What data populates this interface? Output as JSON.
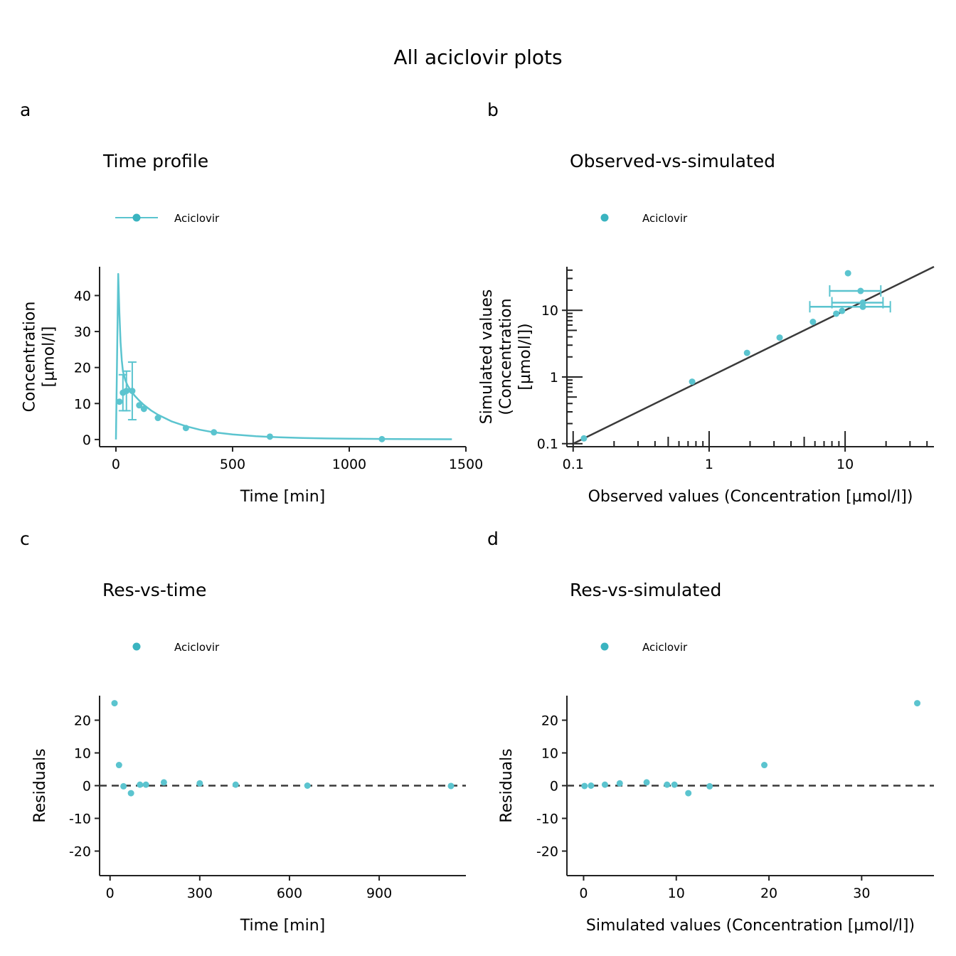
{
  "title": "All aciclovir plots",
  "colors": {
    "series": "#5bc4cf",
    "line": "#3a3a3a",
    "axis": "#222222"
  },
  "panels": [
    {
      "tag": "a",
      "title": "Time profile",
      "legend": "Aciclovir"
    },
    {
      "tag": "b",
      "title": "Observed-vs-simulated",
      "legend": "Aciclovir"
    },
    {
      "tag": "c",
      "title": "Res-vs-time",
      "legend": "Aciclovir"
    },
    {
      "tag": "d",
      "title": "Res-vs-simulated",
      "legend": "Aciclovir"
    }
  ],
  "chart_data": [
    {
      "type": "line",
      "title": "Time profile",
      "xlabel": "Time [min]",
      "ylabel": [
        "Concentration",
        "[µmol/l]"
      ],
      "xlim": [
        -70,
        1500
      ],
      "ylim": [
        -2,
        48
      ],
      "xticks": [
        0,
        500,
        1000,
        1500
      ],
      "yticks": [
        0,
        10,
        20,
        30,
        40
      ],
      "legend": {
        "entries": [
          "Aciclovir"
        ],
        "position": "top-left"
      },
      "simulated": {
        "name": "Aciclovir",
        "x": [
          0,
          10,
          15,
          20,
          25,
          30,
          40,
          50,
          60,
          80,
          100,
          120,
          150,
          180,
          240,
          300,
          360,
          420,
          500,
          600,
          700,
          800,
          900,
          1000,
          1100,
          1200,
          1300,
          1440
        ],
        "y": [
          0,
          46,
          35,
          27,
          22,
          19,
          16.5,
          15,
          14,
          12.2,
          10.8,
          9.6,
          8.1,
          6.9,
          5,
          3.7,
          2.7,
          2,
          1.4,
          0.9,
          0.6,
          0.42,
          0.3,
          0.22,
          0.17,
          0.13,
          0.1,
          0.08
        ]
      },
      "observed": {
        "name": "Aciclovir",
        "points": [
          {
            "x": 15,
            "y": 10.5
          },
          {
            "x": 30,
            "y": 13,
            "ymin": 8,
            "ymax": 18
          },
          {
            "x": 45,
            "y": 13.5,
            "ymin": 8,
            "ymax": 19
          },
          {
            "x": 70,
            "y": 13.5,
            "ymin": 5.5,
            "ymax": 21.5
          },
          {
            "x": 100,
            "y": 9.5
          },
          {
            "x": 120,
            "y": 8.5
          },
          {
            "x": 180,
            "y": 6
          },
          {
            "x": 300,
            "y": 3.2
          },
          {
            "x": 420,
            "y": 2
          },
          {
            "x": 660,
            "y": 0.8
          },
          {
            "x": 1140,
            "y": 0.1
          }
        ]
      }
    },
    {
      "type": "scatter",
      "title": "Observed-vs-simulated",
      "xlabel": "Observed values (Concentration [µmol/l])",
      "ylabel": [
        "Simulated values",
        "(Concentration",
        "[µmol/l])"
      ],
      "xscale": "log",
      "yscale": "log",
      "xlim": [
        0.09,
        45
      ],
      "ylim": [
        0.09,
        45
      ],
      "xticks": [
        0.1,
        1,
        10
      ],
      "yticks": [
        0.1,
        1,
        10
      ],
      "identity_line": true,
      "legend": {
        "entries": [
          "Aciclovir"
        ],
        "position": "top-left"
      },
      "points": [
        {
          "x": 0.12,
          "y": 0.12
        },
        {
          "x": 0.75,
          "y": 0.85
        },
        {
          "x": 1.9,
          "y": 2.3
        },
        {
          "x": 3.3,
          "y": 3.9
        },
        {
          "x": 5.8,
          "y": 6.7
        },
        {
          "x": 8.6,
          "y": 8.9
        },
        {
          "x": 9.5,
          "y": 9.8
        },
        {
          "x": 10.5,
          "y": 36
        },
        {
          "x": 13,
          "y": 19.5,
          "xmin": 7.7,
          "xmax": 18.3
        },
        {
          "x": 13.5,
          "y": 13,
          "xmin": 8,
          "xmax": 19
        },
        {
          "x": 13.5,
          "y": 11.3,
          "xmin": 5.5,
          "xmax": 21.5
        }
      ]
    },
    {
      "type": "scatter",
      "title": "Res-vs-time",
      "xlabel": "Time [min]",
      "ylabel": "Residuals",
      "xlim": [
        -35,
        1190
      ],
      "ylim": [
        -27.5,
        27.5
      ],
      "xticks": [
        0,
        300,
        600,
        900
      ],
      "yticks": [
        20,
        10,
        0,
        -10,
        -20
      ],
      "hline": 0,
      "legend": {
        "entries": [
          "Aciclovir"
        ],
        "position": "top-left"
      },
      "points": [
        {
          "x": 15,
          "y": 25.2
        },
        {
          "x": 30,
          "y": 6.3
        },
        {
          "x": 45,
          "y": -0.2
        },
        {
          "x": 70,
          "y": -2.3
        },
        {
          "x": 100,
          "y": 0.3
        },
        {
          "x": 120,
          "y": 0.3
        },
        {
          "x": 180,
          "y": 1
        },
        {
          "x": 300,
          "y": 0.7
        },
        {
          "x": 420,
          "y": 0.3
        },
        {
          "x": 660,
          "y": 0
        },
        {
          "x": 1140,
          "y": -0.1
        }
      ]
    },
    {
      "type": "scatter",
      "title": "Res-vs-simulated",
      "xlabel": "Simulated values (Concentration [µmol/l])",
      "ylabel": "Residuals",
      "xlim": [
        -1.8,
        37.8
      ],
      "ylim": [
        -27.5,
        27.5
      ],
      "xticks": [
        0,
        10,
        20,
        30
      ],
      "yticks": [
        20,
        10,
        0,
        -10,
        -20
      ],
      "hline": 0,
      "legend": {
        "entries": [
          "Aciclovir"
        ],
        "position": "top-left"
      },
      "points": [
        {
          "x": 0.1,
          "y": -0.1
        },
        {
          "x": 0.8,
          "y": 0
        },
        {
          "x": 2.3,
          "y": 0.3
        },
        {
          "x": 3.9,
          "y": 0.7
        },
        {
          "x": 6.8,
          "y": 1
        },
        {
          "x": 9,
          "y": 0.3
        },
        {
          "x": 9.8,
          "y": 0.3
        },
        {
          "x": 11.3,
          "y": -2.3
        },
        {
          "x": 13.6,
          "y": -0.2
        },
        {
          "x": 19.5,
          "y": 6.3
        },
        {
          "x": 36,
          "y": 25.2
        }
      ]
    }
  ]
}
